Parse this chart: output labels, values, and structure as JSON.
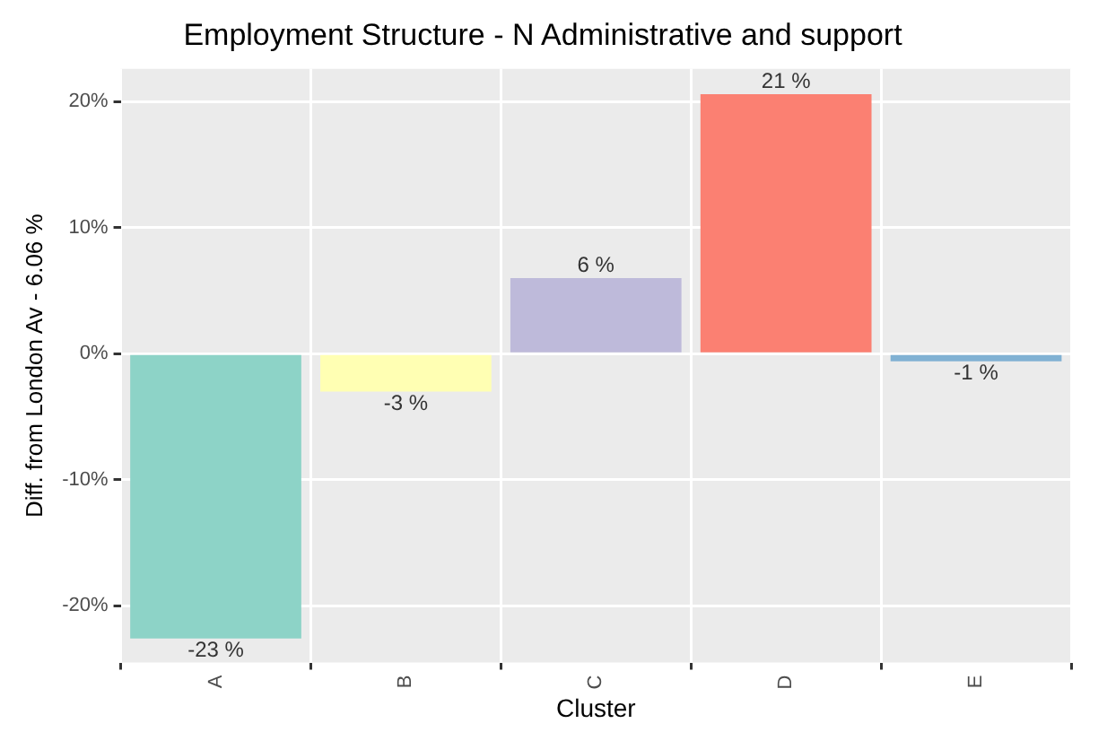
{
  "chart_data": {
    "type": "bar",
    "title": "Employment Structure - N Administrative and support",
    "xlabel": "Cluster",
    "ylabel": "Diff. from London Av - 6.06 %",
    "categories": [
      "A",
      "B",
      "C",
      "D",
      "E"
    ],
    "values": [
      -22.6,
      -3,
      6,
      20.6,
      -0.6
    ],
    "value_labels": [
      "-23 %",
      "-3 %",
      "6 %",
      "21 %",
      "-1 %"
    ],
    "colors": [
      "#8dd3c7",
      "#ffffb3",
      "#bebada",
      "#fb8072",
      "#80b1d3"
    ],
    "ylim": [
      -24.5,
      22.6
    ],
    "yticks": [
      {
        "value": -20,
        "label": "-20%"
      },
      {
        "value": -10,
        "label": "-10%"
      },
      {
        "value": 0,
        "label": "0%"
      },
      {
        "value": 10,
        "label": "10%"
      },
      {
        "value": 20,
        "label": "20%"
      }
    ],
    "grid": true,
    "legend": false
  }
}
